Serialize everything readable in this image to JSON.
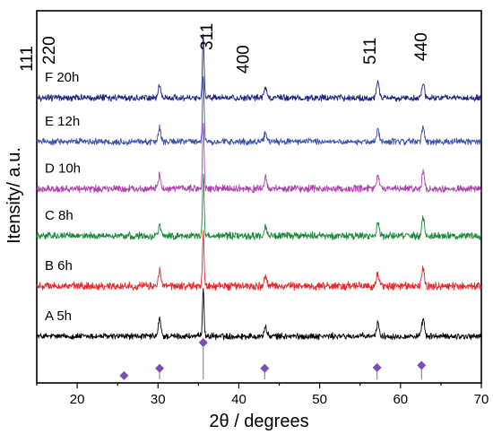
{
  "chart_data": {
    "type": "line",
    "xlabel": "2θ / degrees",
    "ylabel": "Itensity/ a.u.",
    "xlim": [
      15,
      70
    ],
    "xticks": [
      20,
      30,
      40,
      50,
      60,
      70
    ],
    "xtick_labels": [
      "20",
      "30",
      "40",
      "50",
      "60",
      "70"
    ],
    "yticks_labels": false,
    "series": [
      {
        "name": "A  5h",
        "color": "#000000",
        "baseline": 0.0,
        "noise": 0.08,
        "peaks": [
          [
            30.2,
            0.55
          ],
          [
            35.6,
            1.55
          ],
          [
            43.3,
            0.3
          ],
          [
            57.2,
            0.45
          ],
          [
            62.8,
            0.55
          ]
        ]
      },
      {
        "name": "B  6h",
        "color": "#e8262a",
        "baseline": 1.6,
        "noise": 0.1,
        "peaks": [
          [
            30.2,
            0.5
          ],
          [
            35.6,
            1.75
          ],
          [
            43.3,
            0.3
          ],
          [
            57.2,
            0.4
          ],
          [
            62.8,
            0.55
          ]
        ]
      },
      {
        "name": "C  8h",
        "color": "#1a8a3a",
        "baseline": 3.2,
        "noise": 0.09,
        "peaks": [
          [
            30.2,
            0.35
          ],
          [
            35.6,
            1.95
          ],
          [
            43.3,
            0.3
          ],
          [
            57.2,
            0.45
          ],
          [
            62.8,
            0.55
          ]
        ]
      },
      {
        "name": "D  10h",
        "color": "#b040b0",
        "baseline": 4.7,
        "noise": 0.09,
        "peaks": [
          [
            30.2,
            0.45
          ],
          [
            35.6,
            2.1
          ],
          [
            43.3,
            0.35
          ],
          [
            57.2,
            0.45
          ],
          [
            62.8,
            0.55
          ]
        ]
      },
      {
        "name": "E  12h",
        "color": "#3a50a8",
        "baseline": 6.2,
        "noise": 0.08,
        "peaks": [
          [
            30.2,
            0.45
          ],
          [
            35.6,
            2.1
          ],
          [
            43.3,
            0.3
          ],
          [
            57.2,
            0.4
          ],
          [
            62.8,
            0.5
          ]
        ]
      },
      {
        "name": "F  20h",
        "color": "#202080",
        "baseline": 7.6,
        "noise": 0.08,
        "peaks": [
          [
            30.2,
            0.45
          ],
          [
            35.6,
            2.0
          ],
          [
            43.3,
            0.3
          ],
          [
            57.2,
            0.5
          ],
          [
            62.8,
            0.5
          ]
        ]
      }
    ],
    "annotations": [
      "111",
      "220",
      "311",
      "400",
      "511",
      "440"
    ],
    "reference_peaks": [
      {
        "x": 25.8,
        "intensity": 0.1
      },
      {
        "x": 30.2,
        "intensity": 0.3
      },
      {
        "x": 35.6,
        "intensity": 1.0
      },
      {
        "x": 43.2,
        "intensity": 0.3
      },
      {
        "x": 57.1,
        "intensity": 0.32
      },
      {
        "x": 62.6,
        "intensity": 0.38
      }
    ],
    "reference_marker_color": "#7b4fb8"
  }
}
